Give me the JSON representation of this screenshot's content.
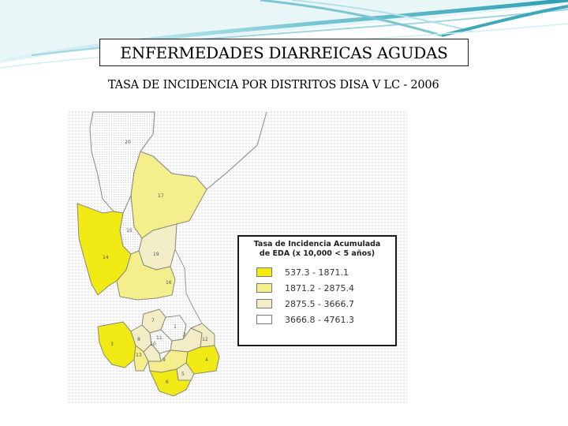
{
  "colors": {
    "accent_teal": "#3fa8b8",
    "class_1": "#f2ea14",
    "class_2": "#f5ee8c",
    "class_3": "#f2edc6",
    "class_4": "#ffffff"
  },
  "slide": {
    "title": "ENFERMEDADES DIARREICAS AGUDAS",
    "subtitle": "TASA DE INCIDENCIA POR DISTRITOS DISA V LC - 2006"
  },
  "map": {
    "districts": [
      {
        "id": "20",
        "label": "20",
        "class": 4
      },
      {
        "id": "17",
        "label": "17",
        "class": 2
      },
      {
        "id": "15",
        "label": "15",
        "class": 4
      },
      {
        "id": "14",
        "label": "14",
        "class": 1
      },
      {
        "id": "19",
        "label": "19",
        "class": 3
      },
      {
        "id": "16",
        "label": "16",
        "class": 2
      },
      {
        "id": "7",
        "label": "7",
        "class": 3
      },
      {
        "id": "1",
        "label": "1",
        "class": 4
      },
      {
        "id": "3",
        "label": "3",
        "class": 1
      },
      {
        "id": "8",
        "label": "8",
        "class": 3
      },
      {
        "id": "11",
        "label": "11",
        "class": 4
      },
      {
        "id": "13",
        "label": "13",
        "class": 2
      },
      {
        "id": "10",
        "label": "10",
        "class": 3
      },
      {
        "id": "2",
        "label": "2",
        "class": 3
      },
      {
        "id": "12",
        "label": "12",
        "class": 3
      },
      {
        "id": "9",
        "label": "9",
        "class": 2
      },
      {
        "id": "4",
        "label": "4",
        "class": 1
      },
      {
        "id": "5",
        "label": "5",
        "class": 3
      },
      {
        "id": "6",
        "label": "6",
        "class": 1
      }
    ],
    "legend": {
      "title_line1": "Tasa de Incidencia Acumulada",
      "title_line2": "de EDA (x 10,000 < 5 años)",
      "items": [
        {
          "label": "537.3 - 1871.1",
          "color": "#f2ea14"
        },
        {
          "label": "1871.2 - 2875.4",
          "color": "#f5ee8c"
        },
        {
          "label": "2875.5 - 3666.7",
          "color": "#f2edc6"
        },
        {
          "label": "3666.8 - 4761.3",
          "color": "#ffffff"
        }
      ]
    }
  }
}
